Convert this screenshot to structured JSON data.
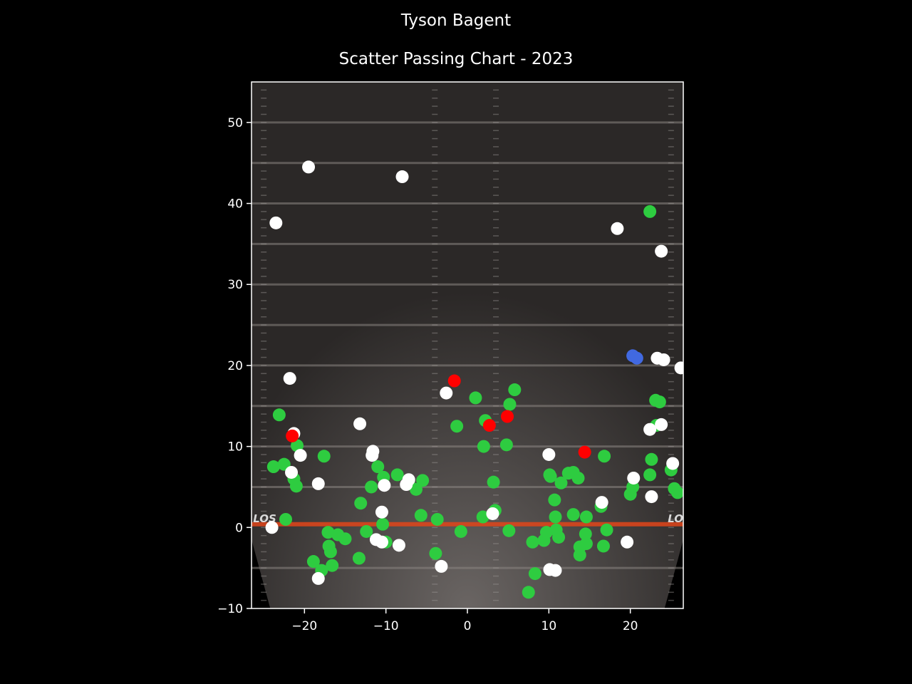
{
  "title": "Tyson Bagent",
  "subtitle": "Scatter Passing Chart - 2023",
  "colors": {
    "background": "#000000",
    "complete": "#2ecc40",
    "incomplete": "#ffffff",
    "interception": "#ff0000",
    "touchdown": "#4169e1",
    "line_of_scrimmage": "#e0451a"
  },
  "field_text": {
    "los_left": "LOS",
    "los_right": "LOS"
  },
  "chart_data": {
    "type": "scatter",
    "xlim": [
      -26.5,
      26.5
    ],
    "ylim": [
      -10,
      55
    ],
    "x_ticks": [
      -20,
      -10,
      0,
      10,
      20
    ],
    "y_ticks": [
      -10,
      0,
      10,
      20,
      30,
      40,
      50
    ],
    "x_tick_labels": [
      "−20",
      "−10",
      "0",
      "10",
      "20"
    ],
    "y_tick_labels": [
      "−10",
      "0",
      "10",
      "20",
      "30",
      "40",
      "50"
    ],
    "grid": false,
    "series": [
      {
        "key": "complete",
        "points": [
          [
            -23.1,
            13.9
          ],
          [
            -23.8,
            7.5
          ],
          [
            -22.5,
            7.8
          ],
          [
            -22.3,
            1.0
          ],
          [
            -20.9,
            10.1
          ],
          [
            -21.3,
            6.0
          ],
          [
            -21.0,
            5.1
          ],
          [
            -17.6,
            8.8
          ],
          [
            -17.1,
            -0.6
          ],
          [
            -17.0,
            -2.3
          ],
          [
            -16.8,
            -3.0
          ],
          [
            -16.6,
            -4.7
          ],
          [
            -15.9,
            -0.9
          ],
          [
            -15.0,
            -1.4
          ],
          [
            -18.9,
            -4.2
          ],
          [
            -17.9,
            -5.3
          ],
          [
            -13.1,
            3.0
          ],
          [
            -12.4,
            -0.5
          ],
          [
            -11.8,
            5.0
          ],
          [
            -11.0,
            7.5
          ],
          [
            -10.3,
            6.2
          ],
          [
            -10.4,
            0.4
          ],
          [
            -10.0,
            -1.8
          ],
          [
            -8.6,
            6.5
          ],
          [
            -7.2,
            5.7
          ],
          [
            -6.3,
            4.7
          ],
          [
            -5.5,
            5.8
          ],
          [
            -5.7,
            1.5
          ],
          [
            -13.3,
            -3.8
          ],
          [
            -3.7,
            1.0
          ],
          [
            -3.9,
            -3.2
          ],
          [
            -0.8,
            -0.5
          ],
          [
            1.0,
            16.0
          ],
          [
            -1.3,
            12.5
          ],
          [
            2.2,
            13.2
          ],
          [
            2.0,
            10.0
          ],
          [
            1.9,
            1.3
          ],
          [
            3.2,
            5.6
          ],
          [
            3.4,
            2.1
          ],
          [
            4.8,
            10.2
          ],
          [
            5.2,
            15.2
          ],
          [
            5.8,
            17.0
          ],
          [
            5.1,
            -0.4
          ],
          [
            7.5,
            -8.0
          ],
          [
            8.0,
            -1.8
          ],
          [
            8.3,
            -5.7
          ],
          [
            9.4,
            -1.6
          ],
          [
            9.7,
            -0.6
          ],
          [
            10.1,
            6.5
          ],
          [
            10.2,
            6.3
          ],
          [
            10.7,
            3.4
          ],
          [
            10.8,
            1.3
          ],
          [
            10.9,
            -0.3
          ],
          [
            11.2,
            -1.2
          ],
          [
            11.5,
            5.5
          ],
          [
            12.4,
            6.7
          ],
          [
            13.0,
            6.8
          ],
          [
            13.0,
            1.6
          ],
          [
            13.6,
            6.1
          ],
          [
            13.8,
            -2.4
          ],
          [
            13.8,
            -3.4
          ],
          [
            14.6,
            -2.0
          ],
          [
            14.5,
            -0.8
          ],
          [
            14.6,
            1.3
          ],
          [
            16.4,
            2.6
          ],
          [
            16.7,
            -2.3
          ],
          [
            16.8,
            8.8
          ],
          [
            17.1,
            -0.3
          ],
          [
            20.0,
            4.1
          ],
          [
            20.3,
            5.0
          ],
          [
            22.4,
            39.0
          ],
          [
            22.6,
            8.4
          ],
          [
            22.4,
            6.5
          ],
          [
            23.1,
            15.7
          ],
          [
            23.6,
            15.5
          ],
          [
            23.2,
            12.6
          ],
          [
            25.0,
            7.1
          ],
          [
            25.4,
            4.8
          ],
          [
            25.8,
            4.3
          ]
        ]
      },
      {
        "key": "incomplete",
        "points": [
          [
            -19.5,
            44.5
          ],
          [
            -23.5,
            37.6
          ],
          [
            -8.0,
            43.3
          ],
          [
            18.4,
            36.9
          ],
          [
            23.8,
            34.1
          ],
          [
            -21.8,
            18.4
          ],
          [
            -21.3,
            11.6
          ],
          [
            -20.5,
            8.9
          ],
          [
            -21.6,
            6.8
          ],
          [
            -18.3,
            5.4
          ],
          [
            -18.3,
            -6.3
          ],
          [
            -24.0,
            0.0
          ],
          [
            -13.2,
            12.8
          ],
          [
            -11.6,
            9.4
          ],
          [
            -11.7,
            8.9
          ],
          [
            -10.2,
            5.2
          ],
          [
            -10.5,
            1.9
          ],
          [
            -11.2,
            -1.5
          ],
          [
            -10.5,
            -1.8
          ],
          [
            -8.4,
            -2.2
          ],
          [
            -7.5,
            5.3
          ],
          [
            -7.2,
            5.9
          ],
          [
            -3.2,
            -4.8
          ],
          [
            -2.6,
            16.6
          ],
          [
            3.1,
            1.7
          ],
          [
            10.0,
            9.0
          ],
          [
            10.1,
            -5.2
          ],
          [
            10.8,
            -5.3
          ],
          [
            16.5,
            3.1
          ],
          [
            19.6,
            -1.8
          ],
          [
            20.4,
            6.1
          ],
          [
            22.6,
            3.8
          ],
          [
            23.3,
            20.9
          ],
          [
            24.1,
            20.7
          ],
          [
            26.2,
            19.7
          ],
          [
            22.4,
            12.1
          ],
          [
            23.8,
            12.7
          ],
          [
            25.2,
            7.9
          ]
        ]
      },
      {
        "key": "interception",
        "points": [
          [
            -21.5,
            11.3
          ],
          [
            -1.6,
            18.1
          ],
          [
            2.7,
            12.6
          ],
          [
            4.9,
            13.7
          ],
          [
            14.4,
            9.3
          ]
        ]
      },
      {
        "key": "touchdown",
        "points": [
          [
            20.3,
            21.2
          ],
          [
            20.8,
            20.9
          ]
        ]
      }
    ]
  }
}
